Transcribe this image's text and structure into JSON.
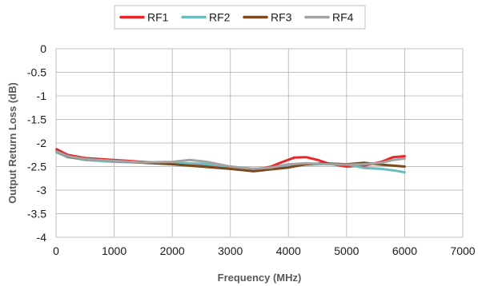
{
  "chart_data": {
    "type": "line",
    "title": "",
    "xlabel": "Frequency (MHz)",
    "ylabel": "Output Return Loss (dB)",
    "xlim": [
      0,
      7000
    ],
    "ylim": [
      -4,
      0
    ],
    "xticks": [
      0,
      1000,
      2000,
      3000,
      4000,
      5000,
      6000,
      7000
    ],
    "yticks": [
      0,
      -0.5,
      -1,
      -1.5,
      -2,
      -2.5,
      -3,
      -3.5,
      -4
    ],
    "xtick_labels": [
      "0",
      "1000",
      "2000",
      "3000",
      "4000",
      "5000",
      "6000",
      "7000"
    ],
    "ytick_labels": [
      "0",
      "-0.5",
      "-1",
      "-1.5",
      "-2",
      "-2.5",
      "-3",
      "-3.5",
      "-4"
    ],
    "grid": true,
    "legend_position": "top-center",
    "series": [
      {
        "name": "RF1",
        "color": "#e8262b",
        "x": [
          10,
          200,
          500,
          1000,
          1500,
          2000,
          2500,
          3000,
          3400,
          3700,
          3900,
          4100,
          4300,
          4500,
          4700,
          5000,
          5300,
          5600,
          5800,
          6000
        ],
        "y": [
          -2.13,
          -2.25,
          -2.32,
          -2.36,
          -2.4,
          -2.43,
          -2.45,
          -2.53,
          -2.58,
          -2.5,
          -2.4,
          -2.31,
          -2.3,
          -2.36,
          -2.44,
          -2.5,
          -2.48,
          -2.4,
          -2.3,
          -2.28
        ]
      },
      {
        "name": "RF2",
        "color": "#6bbcbc",
        "x": [
          10,
          200,
          500,
          1000,
          1500,
          2000,
          2500,
          3000,
          3400,
          3700,
          4000,
          4300,
          4600,
          5000,
          5300,
          5600,
          5800,
          6000
        ],
        "y": [
          -2.2,
          -2.3,
          -2.36,
          -2.4,
          -2.41,
          -2.42,
          -2.44,
          -2.5,
          -2.55,
          -2.53,
          -2.48,
          -2.46,
          -2.45,
          -2.45,
          -2.53,
          -2.55,
          -2.58,
          -2.62
        ]
      },
      {
        "name": "RF3",
        "color": "#7b4a1e",
        "x": [
          10,
          200,
          500,
          1000,
          1500,
          2000,
          2500,
          3000,
          3400,
          3700,
          4000,
          4300,
          4600,
          5000,
          5300,
          5600,
          5800,
          6000
        ],
        "y": [
          -2.17,
          -2.29,
          -2.34,
          -2.38,
          -2.42,
          -2.45,
          -2.5,
          -2.55,
          -2.6,
          -2.56,
          -2.52,
          -2.45,
          -2.43,
          -2.45,
          -2.42,
          -2.46,
          -2.48,
          -2.5
        ]
      },
      {
        "name": "RF4",
        "color": "#a3a3a3",
        "x": [
          10,
          200,
          500,
          1000,
          1500,
          2000,
          2300,
          2600,
          3000,
          3400,
          3700,
          4000,
          4300,
          4700,
          5000,
          5300,
          5600,
          5800,
          6000
        ],
        "y": [
          -2.18,
          -2.28,
          -2.34,
          -2.38,
          -2.41,
          -2.4,
          -2.36,
          -2.4,
          -2.5,
          -2.55,
          -2.52,
          -2.45,
          -2.43,
          -2.45,
          -2.46,
          -2.45,
          -2.42,
          -2.36,
          -2.33
        ]
      }
    ]
  }
}
